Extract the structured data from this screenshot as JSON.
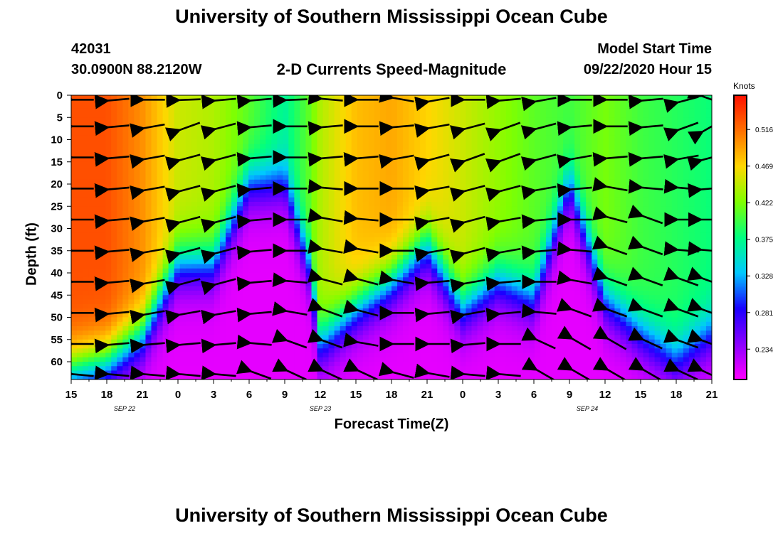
{
  "chart_data": {
    "type": "heatmap",
    "title": "University of Southern Mississippi Ocean Cube",
    "footer_title": "University of Southern Mississippi Ocean Cube",
    "subtitle": "2-D Currents Speed-Magnitude",
    "station_id": "42031",
    "station_location": "30.0900N 88.2120W",
    "model_start_label": "Model Start Time",
    "model_start_value": "09/22/2020 Hour 15",
    "xlabel": "Forecast Time(Z)",
    "ylabel": "Depth (ft)",
    "units_label": "Knots",
    "x_tick_labels": [
      "15",
      "18",
      "21",
      "0",
      "3",
      "6",
      "9",
      "12",
      "15",
      "18",
      "21",
      "0",
      "3",
      "6",
      "9",
      "12",
      "15",
      "18",
      "21"
    ],
    "date_labels": [
      {
        "text": "SEP 22",
        "tick_index": 1.5
      },
      {
        "text": "SEP 23",
        "tick_index": 7
      },
      {
        "text": "SEP 24",
        "tick_index": 14.5
      }
    ],
    "y_ticks": [
      0,
      5,
      10,
      15,
      20,
      25,
      30,
      35,
      40,
      45,
      50,
      55,
      60
    ],
    "ylim": [
      0,
      64
    ],
    "xlim_hours": [
      0,
      54
    ],
    "colorbar": {
      "tick_labels": [
        "0.516",
        "0.469",
        "0.422",
        "0.375",
        "0.328",
        "0.281",
        "0.234"
      ],
      "tick_values": [
        0.516,
        0.469,
        0.422,
        0.375,
        0.328,
        0.281,
        0.234
      ],
      "vmin": 0.195,
      "vmax": 0.56,
      "colors": [
        "#ff00ff",
        "#8a00ff",
        "#1a00ff",
        "#00c8ff",
        "#00ff80",
        "#80ff00",
        "#ffd700",
        "#ff7000",
        "#ff1000"
      ]
    },
    "profile_hours": [
      0,
      3,
      6,
      9,
      12,
      15,
      18,
      20,
      21,
      24,
      27,
      30,
      33,
      36,
      39,
      42,
      45,
      48,
      51,
      54
    ],
    "surface_speed": [
      0.53,
      0.53,
      0.5,
      0.45,
      0.44,
      0.41,
      0.37,
      0.41,
      0.44,
      0.48,
      0.49,
      0.47,
      0.45,
      0.43,
      0.41,
      0.4,
      0.42,
      0.4,
      0.39,
      0.38
    ],
    "transition_depth_ft": [
      62,
      60,
      54,
      38,
      38,
      20,
      20,
      38,
      56,
      48,
      42,
      34,
      48,
      42,
      46,
      20,
      46,
      54,
      60,
      54
    ],
    "arrow_depths_ft": [
      1,
      7,
      14,
      21,
      28,
      35,
      42,
      49,
      56,
      63
    ],
    "arrow_hours": [
      1,
      4,
      7,
      10,
      13,
      16,
      19,
      22,
      25,
      28,
      31,
      34,
      37,
      40,
      43,
      46,
      49,
      52,
      54
    ],
    "arrow_angles_deg": [
      [
        180,
        185,
        180,
        182,
        185,
        185,
        182,
        175,
        180,
        170,
        190,
        180,
        185,
        190,
        180,
        180,
        185,
        195,
        160
      ],
      [
        180,
        185,
        190,
        200,
        195,
        185,
        180,
        185,
        180,
        185,
        190,
        195,
        200,
        195,
        185,
        180,
        185,
        200,
        210
      ],
      [
        180,
        185,
        190,
        195,
        195,
        185,
        180,
        185,
        185,
        190,
        195,
        200,
        200,
        195,
        190,
        185,
        185,
        190,
        195
      ],
      [
        180,
        185,
        190,
        195,
        195,
        185,
        180,
        175,
        180,
        180,
        190,
        195,
        195,
        190,
        185,
        170,
        175,
        175,
        185
      ],
      [
        180,
        185,
        190,
        195,
        195,
        185,
        180,
        170,
        175,
        180,
        190,
        195,
        190,
        185,
        180,
        165,
        160,
        180,
        180
      ],
      [
        180,
        185,
        190,
        195,
        195,
        185,
        180,
        170,
        170,
        180,
        190,
        195,
        190,
        185,
        175,
        160,
        160,
        175,
        175
      ],
      [
        180,
        185,
        190,
        195,
        195,
        185,
        175,
        165,
        165,
        170,
        185,
        190,
        185,
        180,
        170,
        160,
        160,
        160,
        160
      ],
      [
        180,
        185,
        190,
        190,
        190,
        185,
        170,
        160,
        165,
        180,
        185,
        190,
        185,
        175,
        160,
        160,
        160,
        160,
        160
      ],
      [
        180,
        185,
        185,
        185,
        185,
        175,
        160,
        160,
        170,
        180,
        180,
        185,
        180,
        155,
        150,
        150,
        155,
        160,
        160
      ],
      [
        175,
        175,
        175,
        175,
        175,
        160,
        155,
        155,
        155,
        165,
        170,
        175,
        175,
        150,
        150,
        150,
        150,
        155,
        155
      ]
    ]
  }
}
